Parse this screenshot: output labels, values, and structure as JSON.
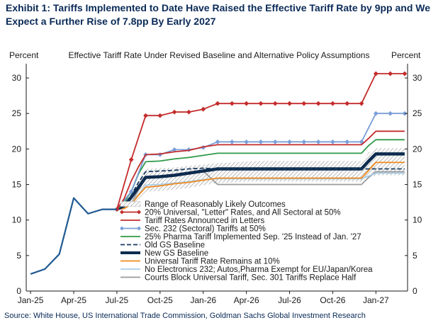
{
  "title": "Exhibit 1: Tariffs Implemented to Date Have Raised the Effective Tariff Rate by 9pp and We Expect a Further Rise of 7.8pp By Early 2027",
  "source": "Source: White House, US International Trade Commission, Goldman Sachs Global Investment Research",
  "chart_data": {
    "type": "line",
    "subtitle": "Effective  Tariff  Rate  Under  Revised  Baseline  and  Alternative  Policy  Assumptions",
    "ylabel_left": "Percent",
    "ylabel_right": "Percent",
    "ylim": [
      0,
      32
    ],
    "yticks": [
      0,
      5,
      10,
      15,
      20,
      25,
      30
    ],
    "x_tick_labels": [
      "Jan-25",
      "Apr-25",
      "Jul-25",
      "Oct-25",
      "Jan-26",
      "Apr-26",
      "Jul-26",
      "Oct-26",
      "Jan-27"
    ],
    "x_tick_positions": [
      0,
      3,
      6,
      9,
      12,
      15,
      18,
      21,
      24
    ],
    "xlim": [
      -0.3,
      26.2
    ],
    "grid": false,
    "legend_placement": "bottom-center",
    "history": {
      "x": [
        0,
        1,
        2,
        3,
        4,
        5,
        6
      ],
      "y": [
        2.4,
        3.1,
        5.2,
        13.1,
        10.9,
        11.5,
        11.5
      ]
    },
    "band": {
      "name": "Range of Reasonably Likely Outcomes",
      "x": [
        6,
        6.5,
        7,
        7.5,
        8,
        9,
        10,
        11,
        12,
        13,
        14,
        15,
        16,
        17,
        18,
        19,
        20,
        21,
        22,
        23,
        23.5,
        24,
        25,
        26
      ],
      "upper": [
        11.5,
        12.2,
        13.5,
        15.5,
        17.2,
        17.3,
        17.4,
        17.6,
        17.8,
        18.0,
        18.1,
        18.2,
        18.3,
        18.3,
        18.3,
        18.3,
        18.3,
        18.3,
        18.3,
        18.3,
        19.5,
        20.1,
        20.1,
        20.1
      ],
      "lower": [
        11.5,
        11.6,
        12.0,
        13.0,
        14.0,
        14.1,
        14.3,
        14.5,
        14.9,
        15.2,
        15.3,
        15.4,
        15.4,
        15.4,
        15.4,
        15.4,
        15.4,
        15.4,
        15.4,
        15.4,
        16.0,
        16.3,
        16.3,
        16.3
      ]
    },
    "series": [
      {
        "name": "20% Universal, \"Letter\" Rates, and All Sectoral at 50%",
        "color": "#c42b2b",
        "style": "solid-marker-diamond",
        "width": 1.8,
        "x": [
          6,
          7,
          8,
          9,
          10,
          11,
          12,
          13,
          14,
          15,
          16,
          17,
          18,
          19,
          20,
          21,
          22,
          23,
          24,
          25,
          26
        ],
        "y": [
          11.5,
          18.5,
          24.7,
          24.7,
          25.2,
          25.2,
          25.6,
          26.4,
          26.4,
          26.4,
          26.4,
          26.4,
          26.4,
          26.4,
          26.4,
          26.4,
          26.4,
          26.4,
          30.6,
          30.6,
          30.6
        ]
      },
      {
        "name": "Tariff Rates Announced in Letters",
        "color": "#c42b2b",
        "style": "solid",
        "width": 1.8,
        "x": [
          6,
          6.5,
          7,
          7.5,
          8,
          9,
          10,
          11,
          12,
          13,
          14,
          15,
          16,
          17,
          18,
          19,
          20,
          21,
          22,
          23,
          23.5,
          24,
          25,
          26
        ],
        "y": [
          11.5,
          13.0,
          15.5,
          17.5,
          19.2,
          19.3,
          19.6,
          19.8,
          20.3,
          20.6,
          20.6,
          20.6,
          20.6,
          20.6,
          20.6,
          20.6,
          20.6,
          20.6,
          20.6,
          20.6,
          21.5,
          22.5,
          22.5,
          22.5
        ]
      },
      {
        "name": "Sec. 232 (Sectoral) Tariffs at 50%",
        "color": "#7a9ed8",
        "style": "solid-marker-diamond",
        "width": 1.8,
        "x": [
          6,
          7,
          8,
          9,
          10,
          11,
          12,
          13,
          14,
          15,
          16,
          17,
          18,
          19,
          20,
          21,
          22,
          23,
          24,
          25,
          26
        ],
        "y": [
          11.5,
          14.0,
          19.2,
          19.2,
          19.9,
          19.9,
          20.2,
          21.0,
          21.0,
          21.0,
          21.0,
          21.0,
          21.0,
          21.0,
          21.0,
          21.0,
          21.0,
          21.0,
          25.0,
          25.0,
          25.0
        ]
      },
      {
        "name": "25% Pharma Tariff Implemented Sep. '25 Instead of Jan. '27",
        "color": "#2e9a48",
        "style": "solid",
        "width": 1.8,
        "x": [
          6,
          6.5,
          7,
          7.5,
          8,
          9,
          10,
          11,
          12,
          13,
          14,
          15,
          16,
          17,
          18,
          19,
          20,
          21,
          22,
          23,
          23.5,
          24,
          25,
          26
        ],
        "y": [
          11.5,
          12.5,
          14.0,
          16.5,
          18.2,
          18.3,
          18.6,
          18.8,
          19.1,
          19.4,
          19.4,
          19.4,
          19.4,
          19.4,
          19.4,
          19.4,
          19.4,
          19.4,
          19.4,
          19.4,
          20.5,
          21.3,
          21.3,
          21.3
        ]
      },
      {
        "name": "Old GS Baseline",
        "color": "#163a5f",
        "style": "dashed",
        "width": 1.8,
        "x": [
          6,
          6.5,
          7,
          7.5,
          8,
          9,
          10,
          11,
          12,
          13,
          14,
          15,
          16,
          17,
          18,
          19,
          20,
          21,
          22,
          23,
          23.5,
          24,
          25,
          26
        ],
        "y": [
          11.5,
          12.2,
          13.5,
          15.3,
          16.8,
          16.9,
          17.0,
          17.2,
          17.3,
          17.2,
          17.2,
          17.2,
          17.2,
          17.2,
          17.2,
          17.2,
          17.2,
          17.2,
          17.2,
          17.2,
          17.2,
          17.2,
          17.2,
          17.2
        ]
      },
      {
        "name": "New GS Baseline",
        "color": "#0d2b4e",
        "style": "solid",
        "width": 4.5,
        "x": [
          6,
          6.5,
          7,
          7.5,
          8,
          9,
          10,
          11,
          12,
          13,
          14,
          15,
          16,
          17,
          18,
          19,
          20,
          21,
          22,
          23,
          23.5,
          24,
          25,
          26
        ],
        "y": [
          11.5,
          12.0,
          13.2,
          14.6,
          16.0,
          16.1,
          16.3,
          16.6,
          16.9,
          17.2,
          17.2,
          17.2,
          17.2,
          17.2,
          17.2,
          17.2,
          17.2,
          17.2,
          17.2,
          17.2,
          18.3,
          19.3,
          19.3,
          19.3
        ]
      },
      {
        "name": "Universal Tariff Rate Remains at 10%",
        "color": "#f08a1c",
        "style": "solid",
        "width": 1.8,
        "x": [
          6,
          6.5,
          7,
          7.5,
          8,
          9,
          10,
          11,
          12,
          13,
          14,
          15,
          16,
          17,
          18,
          19,
          20,
          21,
          22,
          23,
          23.5,
          24,
          25,
          26
        ],
        "y": [
          11.5,
          11.6,
          12.2,
          13.5,
          14.6,
          14.8,
          15.1,
          15.3,
          15.6,
          15.9,
          15.9,
          15.9,
          15.9,
          15.9,
          15.9,
          15.9,
          15.9,
          15.9,
          15.9,
          15.9,
          17.0,
          18.1,
          18.1,
          18.1
        ]
      },
      {
        "name": "No Electronics 232; Autos,Pharma Exempt for EU/Japan/Korea",
        "color": "#a9cde8",
        "style": "solid",
        "width": 1.8,
        "x": [
          6,
          6.5,
          7,
          7.5,
          8,
          9,
          10,
          11,
          12,
          13,
          14,
          15,
          16,
          17,
          18,
          19,
          20,
          21,
          22,
          23,
          23.5,
          24,
          25,
          26
        ],
        "y": [
          11.5,
          11.8,
          12.4,
          13.6,
          14.9,
          15.0,
          15.2,
          15.4,
          15.7,
          15.8,
          15.8,
          15.8,
          15.8,
          15.8,
          15.8,
          15.8,
          15.8,
          15.8,
          15.8,
          15.8,
          16.2,
          16.6,
          16.6,
          16.6
        ]
      },
      {
        "name": "Courts Block Universal Tariff, Sec. 301 Tariffs Replace Half",
        "color": "#9a9a9a",
        "style": "solid",
        "width": 1.8,
        "x": [
          6,
          6.5,
          7,
          7.5,
          8,
          9,
          10,
          11,
          12,
          13,
          14,
          15,
          16,
          17,
          18,
          19,
          20,
          21,
          22,
          23,
          23.5,
          24,
          25,
          26
        ],
        "y": [
          11.5,
          11.8,
          12.4,
          14.2,
          16.0,
          16.1,
          16.3,
          16.6,
          16.9,
          15.0,
          15.0,
          15.0,
          15.0,
          15.0,
          15.0,
          15.0,
          15.0,
          15.0,
          15.0,
          15.0,
          16.0,
          16.8,
          16.8,
          16.8
        ]
      }
    ]
  }
}
